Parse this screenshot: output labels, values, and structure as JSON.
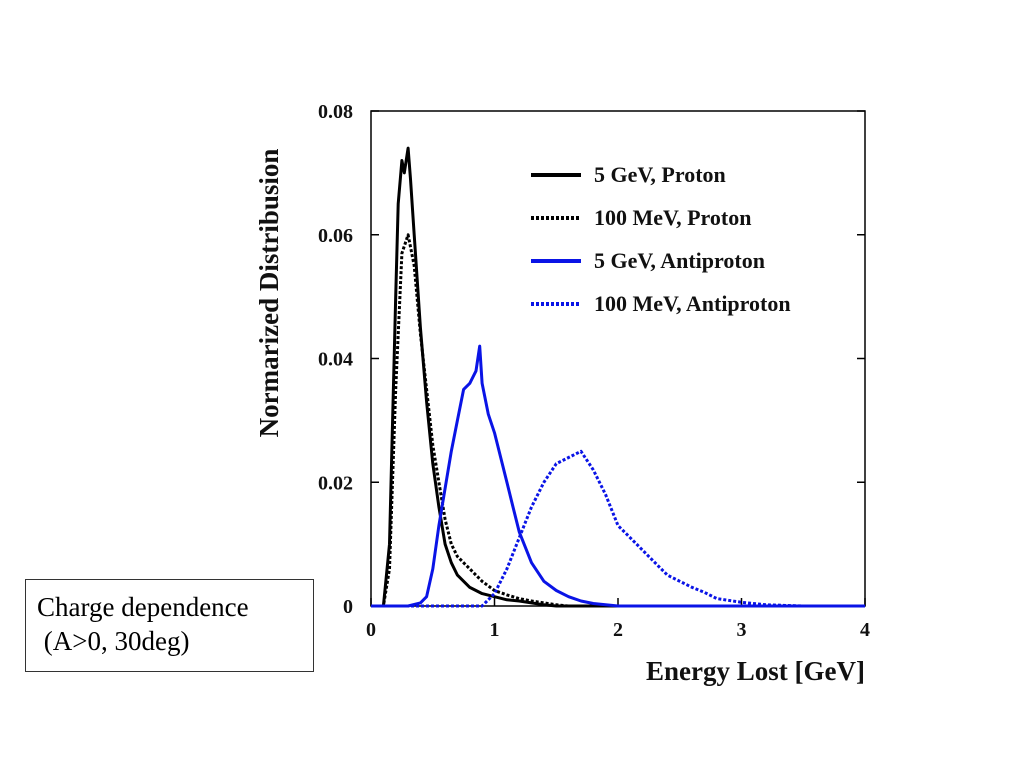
{
  "note": {
    "line1": "Charge dependence",
    "line2": " (A>0, 30deg)"
  },
  "chart_data": {
    "type": "line",
    "title": "",
    "xlabel": "Energy Lost [GeV]",
    "ylabel": "Normarized Distribusion",
    "xlim": [
      0,
      4
    ],
    "ylim": [
      0,
      0.08
    ],
    "x_ticks": [
      "0",
      "1",
      "2",
      "3",
      "4"
    ],
    "y_ticks": [
      "0",
      "0.02",
      "0.04",
      "0.06",
      "0.08"
    ],
    "grid": false,
    "legend_position": "top-right",
    "series": [
      {
        "name": "5 GeV, Proton",
        "color": "#000000",
        "style": "solid",
        "x": [
          0,
          0.1,
          0.15,
          0.2,
          0.22,
          0.25,
          0.27,
          0.3,
          0.32,
          0.35,
          0.4,
          0.45,
          0.5,
          0.55,
          0.6,
          0.65,
          0.7,
          0.8,
          0.9,
          1.0,
          1.1,
          1.2,
          1.3,
          1.4,
          1.5,
          4.0
        ],
        "y": [
          0,
          0,
          0.01,
          0.05,
          0.065,
          0.072,
          0.07,
          0.074,
          0.069,
          0.06,
          0.045,
          0.033,
          0.023,
          0.016,
          0.01,
          0.007,
          0.005,
          0.003,
          0.002,
          0.0015,
          0.001,
          0.0008,
          0.0005,
          0.0002,
          0,
          0
        ]
      },
      {
        "name": "100 MeV, Proton",
        "color": "#000000",
        "style": "dotted",
        "x": [
          0,
          0.1,
          0.15,
          0.2,
          0.25,
          0.3,
          0.35,
          0.4,
          0.45,
          0.5,
          0.55,
          0.6,
          0.65,
          0.7,
          0.8,
          0.9,
          1.0,
          1.1,
          1.2,
          1.3,
          1.4,
          1.5,
          1.6,
          4.0
        ],
        "y": [
          0,
          0,
          0.006,
          0.035,
          0.057,
          0.06,
          0.055,
          0.044,
          0.035,
          0.026,
          0.02,
          0.014,
          0.01,
          0.008,
          0.006,
          0.004,
          0.0025,
          0.0018,
          0.0012,
          0.0008,
          0.0005,
          0.0002,
          0,
          0
        ]
      },
      {
        "name": "5 GeV, Antiproton",
        "color": "#0a14e6",
        "style": "solid",
        "x": [
          0,
          0.3,
          0.4,
          0.45,
          0.5,
          0.55,
          0.6,
          0.65,
          0.7,
          0.75,
          0.8,
          0.85,
          0.88,
          0.9,
          0.95,
          1.0,
          1.05,
          1.1,
          1.15,
          1.2,
          1.3,
          1.4,
          1.5,
          1.6,
          1.7,
          1.8,
          2.0,
          4.0
        ],
        "y": [
          0,
          0,
          0.0005,
          0.0015,
          0.006,
          0.013,
          0.019,
          0.025,
          0.03,
          0.035,
          0.036,
          0.038,
          0.042,
          0.036,
          0.031,
          0.028,
          0.024,
          0.02,
          0.016,
          0.012,
          0.007,
          0.004,
          0.0025,
          0.0015,
          0.0008,
          0.0004,
          0,
          0
        ]
      },
      {
        "name": "100 MeV, Antiproton",
        "color": "#0a14e6",
        "style": "dotted",
        "x": [
          0,
          0.9,
          1.0,
          1.1,
          1.2,
          1.3,
          1.4,
          1.5,
          1.6,
          1.7,
          1.8,
          1.9,
          2.0,
          2.1,
          2.2,
          2.3,
          2.4,
          2.5,
          2.6,
          2.7,
          2.8,
          3.0,
          3.2,
          3.5,
          4.0
        ],
        "y": [
          0,
          0,
          0.002,
          0.006,
          0.011,
          0.016,
          0.02,
          0.023,
          0.024,
          0.025,
          0.022,
          0.018,
          0.013,
          0.011,
          0.009,
          0.007,
          0.005,
          0.004,
          0.003,
          0.0022,
          0.0012,
          0.0006,
          0.0002,
          0,
          0
        ]
      }
    ]
  }
}
